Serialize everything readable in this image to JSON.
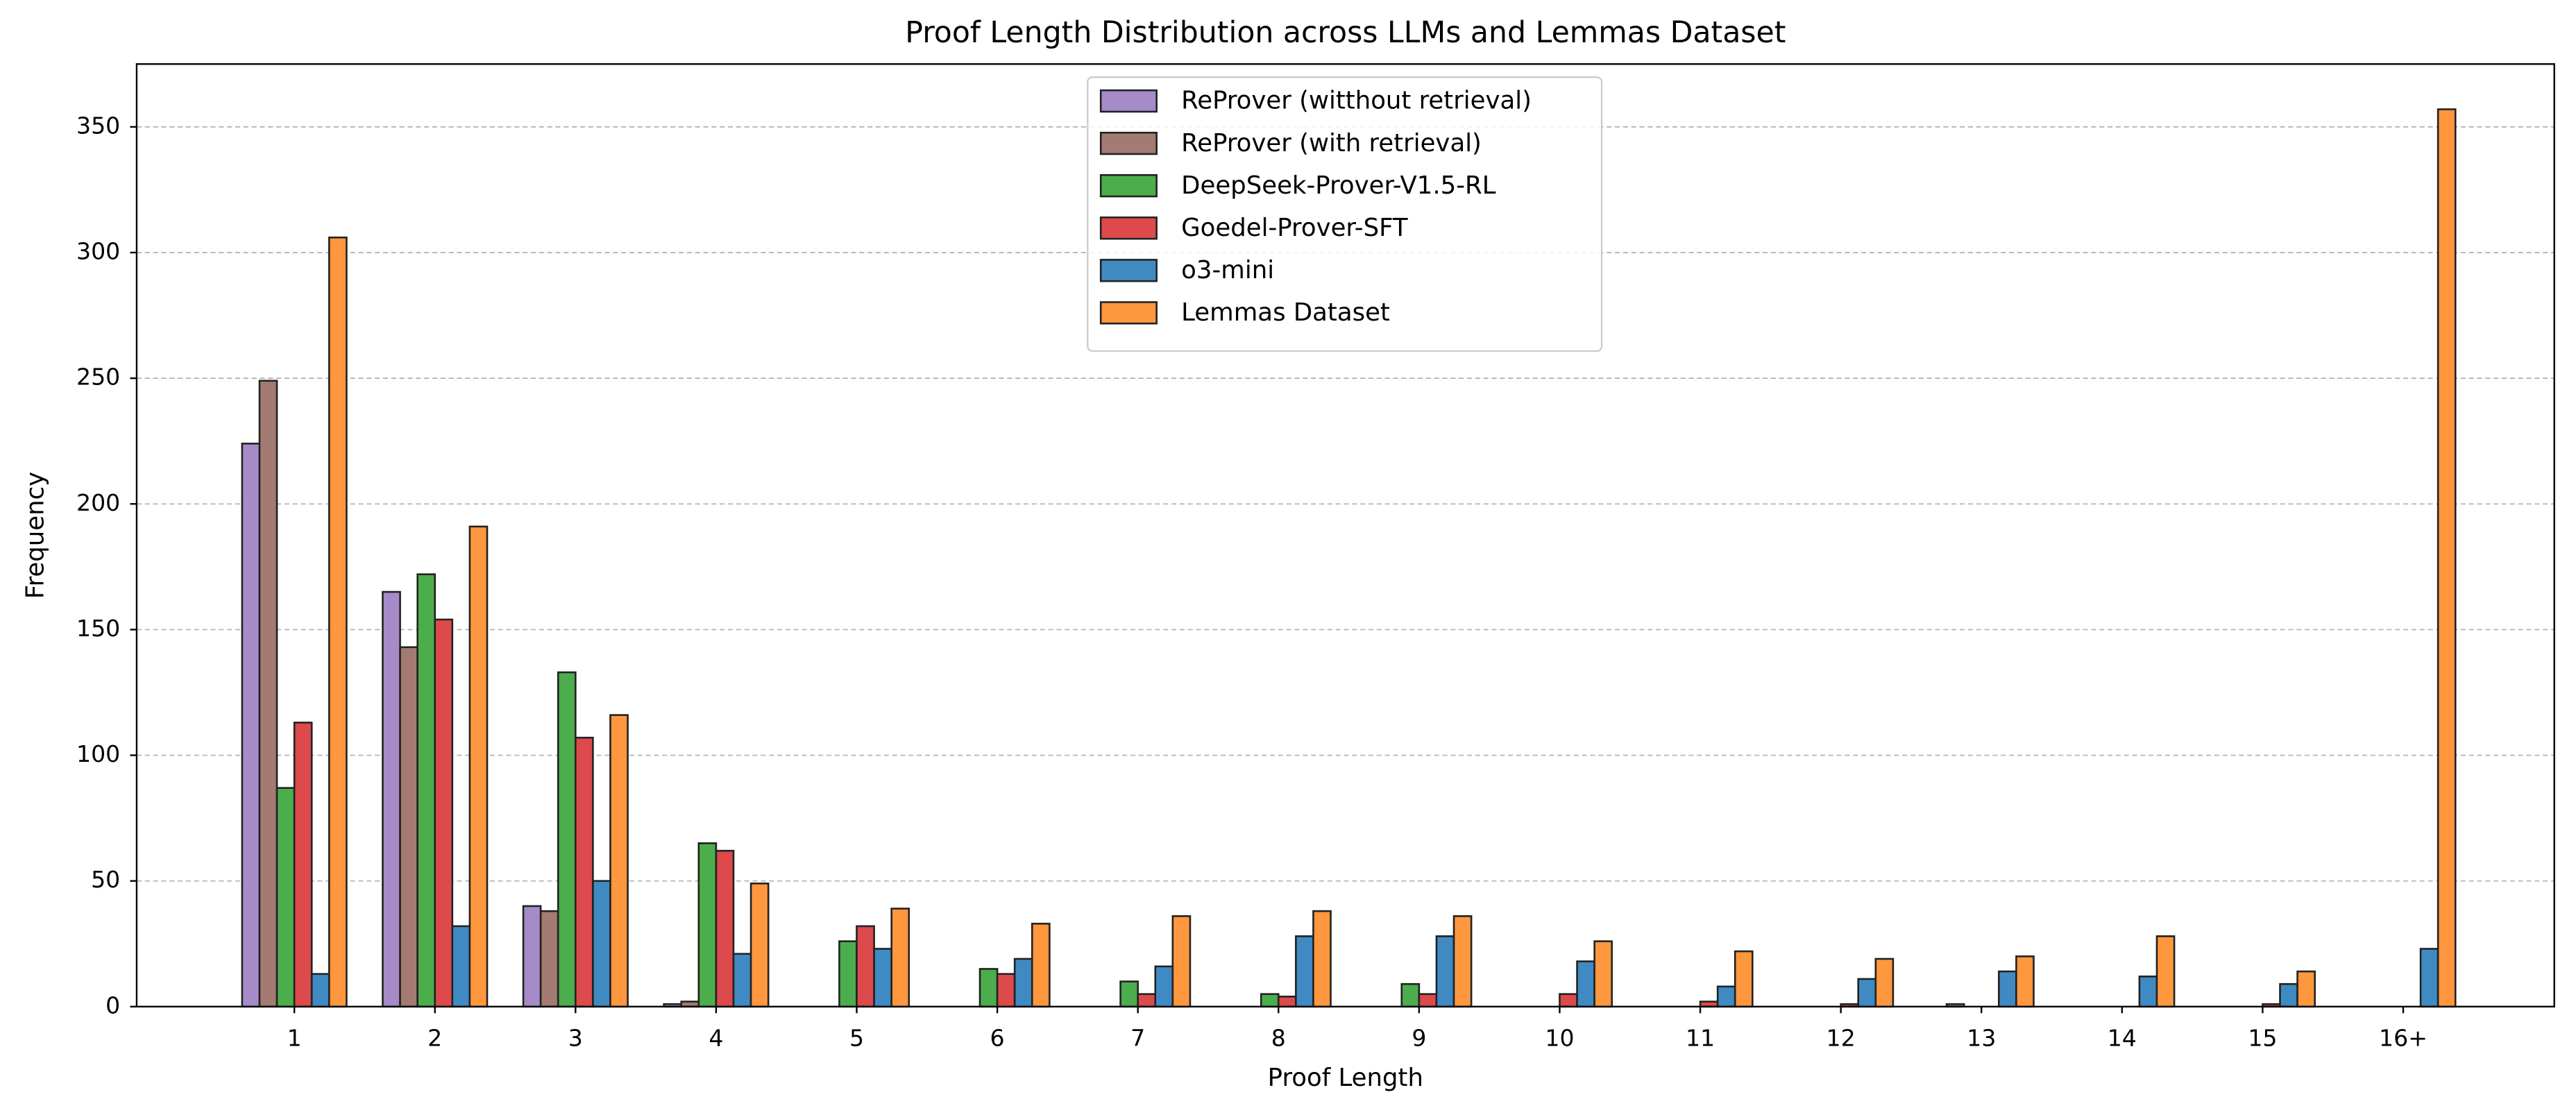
{
  "chart_data": {
    "type": "bar",
    "title": "Proof Length Distribution across LLMs and Lemmas Dataset",
    "x_label": "Proof Length",
    "y_label": "Frequency",
    "categories": [
      "1",
      "2",
      "3",
      "4",
      "5",
      "6",
      "7",
      "8",
      "9",
      "10",
      "11",
      "12",
      "13",
      "14",
      "15",
      "16+"
    ],
    "series": [
      {
        "name": "ReProver (witthout retrieval)",
        "color": "#a68bc8",
        "values": [
          224,
          165,
          40,
          1,
          0,
          0,
          0,
          0,
          0,
          0,
          0,
          0,
          0,
          0,
          0,
          0
        ]
      },
      {
        "name": "ReProver (with retrieval)",
        "color": "#a37b73",
        "values": [
          249,
          143,
          38,
          2,
          0,
          0,
          0,
          0,
          0,
          0,
          0,
          0,
          1,
          0,
          0,
          0
        ]
      },
      {
        "name": "DeepSeek-Prover-V1.5-RL",
        "color": "#4cad4c",
        "values": [
          87,
          172,
          133,
          65,
          26,
          15,
          10,
          5,
          9,
          0,
          0,
          0,
          0,
          0,
          0,
          0
        ]
      },
      {
        "name": "Goedel-Prover-SFT",
        "color": "#dc4a4b",
        "values": [
          113,
          154,
          107,
          62,
          32,
          13,
          5,
          4,
          5,
          5,
          2,
          1,
          0,
          0,
          1,
          0
        ]
      },
      {
        "name": "o3-mini",
        "color": "#3f8ac2",
        "values": [
          13,
          32,
          50,
          21,
          23,
          19,
          16,
          28,
          28,
          18,
          8,
          11,
          14,
          12,
          9,
          23
        ]
      },
      {
        "name": "Lemmas Dataset",
        "color": "#ff973e",
        "values": [
          306,
          191,
          116,
          49,
          39,
          33,
          36,
          38,
          36,
          26,
          22,
          19,
          20,
          28,
          14,
          357
        ]
      }
    ],
    "ylim": [
      0,
      375
    ],
    "yticks": [
      0,
      50,
      100,
      150,
      200,
      250,
      300,
      350
    ],
    "grid": true,
    "legend": "upper center"
  }
}
